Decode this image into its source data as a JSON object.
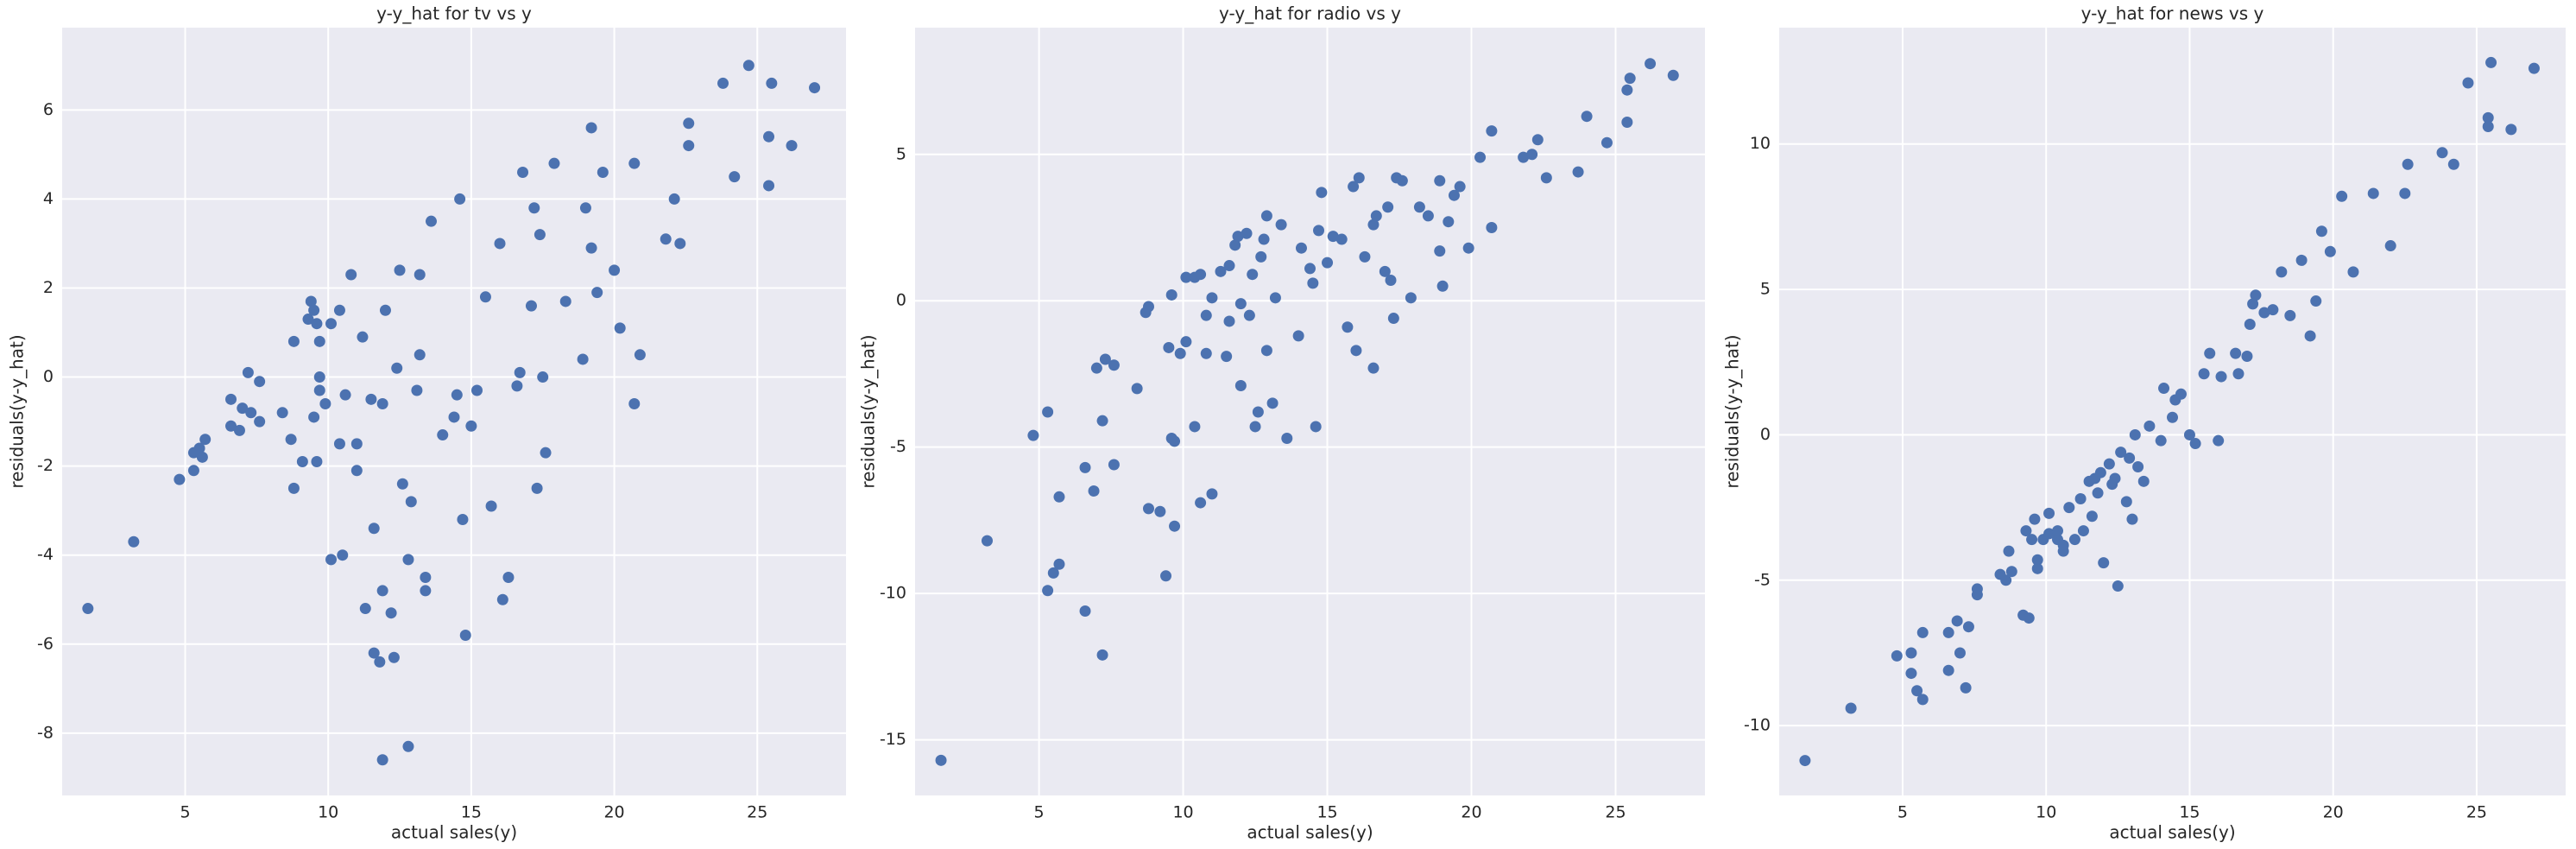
{
  "chart_data": [
    {
      "type": "scatter",
      "title": "y-y_hat for tv vs y",
      "xlabel": "actual sales(y)",
      "ylabel": "residuals(y-y_hat)",
      "color": "#4c72b0",
      "grid": true,
      "xlim": [
        0.7,
        28.1
      ],
      "ylim": [
        -9.4,
        7.85
      ],
      "xticks": [
        5,
        10,
        15,
        20,
        25
      ],
      "yticks": [
        -8,
        -6,
        -4,
        -2,
        0,
        2,
        4,
        6
      ],
      "x": [
        1.6,
        3.2,
        4.8,
        5.3,
        5.3,
        5.5,
        5.6,
        5.7,
        6.6,
        6.6,
        6.9,
        7.0,
        7.2,
        7.3,
        7.6,
        7.6,
        8.4,
        8.7,
        8.8,
        8.8,
        9.1,
        9.3,
        9.4,
        9.5,
        9.5,
        9.6,
        9.6,
        9.7,
        9.7,
        9.7,
        9.9,
        10.1,
        10.1,
        10.4,
        10.4,
        10.5,
        10.6,
        10.8,
        11.0,
        11.0,
        11.2,
        11.3,
        11.5,
        11.6,
        11.6,
        11.8,
        11.9,
        11.9,
        11.9,
        12.0,
        12.2,
        12.3,
        12.4,
        12.5,
        12.6,
        12.8,
        12.8,
        12.9,
        13.1,
        13.2,
        13.2,
        13.4,
        13.4,
        13.6,
        14.0,
        14.4,
        14.5,
        14.6,
        14.7,
        14.8,
        15.0,
        15.2,
        15.5,
        15.7,
        16.0,
        16.1,
        16.3,
        16.6,
        16.7,
        16.8,
        17.1,
        17.2,
        17.3,
        17.4,
        17.5,
        17.6,
        17.9,
        18.3,
        18.9,
        19.0,
        19.2,
        19.2,
        19.4,
        19.6,
        20.0,
        20.2,
        20.7,
        20.7,
        20.9,
        21.8,
        22.1,
        22.3,
        22.6,
        22.6,
        23.8,
        24.2,
        24.7,
        25.4,
        25.4,
        25.5,
        26.2,
        27.0
      ],
      "values": [
        -5.2,
        -3.7,
        -2.3,
        -2.1,
        -1.7,
        -1.6,
        -1.8,
        -1.4,
        -1.1,
        -0.5,
        -1.2,
        -0.7,
        0.1,
        -0.8,
        -0.1,
        -1.0,
        -0.8,
        -1.4,
        -2.5,
        0.8,
        -1.9,
        1.3,
        1.7,
        -0.9,
        1.5,
        1.2,
        -1.9,
        0.8,
        0.0,
        -0.3,
        -0.6,
        -4.1,
        1.2,
        -1.5,
        1.5,
        -4.0,
        -0.4,
        2.3,
        -2.1,
        -1.5,
        0.9,
        -5.2,
        -0.5,
        -3.4,
        -6.2,
        -6.4,
        -8.6,
        -4.8,
        -0.6,
        1.5,
        -5.3,
        -6.3,
        0.2,
        2.4,
        -2.4,
        -4.1,
        -8.3,
        -2.8,
        -0.3,
        0.5,
        2.3,
        -4.5,
        -4.8,
        3.5,
        -1.3,
        -0.9,
        -0.4,
        4.0,
        -3.2,
        -5.8,
        -1.1,
        -0.3,
        1.8,
        -2.9,
        3.0,
        -5.0,
        -4.5,
        -0.2,
        0.1,
        4.6,
        1.6,
        3.8,
        -2.5,
        3.2,
        0.0,
        -1.7,
        4.8,
        1.7,
        0.4,
        3.8,
        2.9,
        5.6,
        1.9,
        4.6,
        2.4,
        1.1,
        -0.6,
        4.8,
        0.5,
        3.1,
        4.0,
        3.0,
        5.2,
        5.7,
        6.6,
        4.5,
        7.0,
        4.3,
        5.4,
        6.6,
        5.2,
        6.5
      ]
    },
    {
      "type": "scatter",
      "title": "y-y_hat for radio vs y",
      "xlabel": "actual sales(y)",
      "ylabel": "residuals(y-y_hat)",
      "color": "#4c72b0",
      "grid": true,
      "xlim": [
        0.7,
        28.1
      ],
      "ylim": [
        -16.9,
        9.33
      ],
      "xticks": [
        5,
        10,
        15,
        20,
        25
      ],
      "yticks": [
        -15,
        -10,
        -5,
        0,
        5
      ],
      "x": [
        1.6,
        3.2,
        4.8,
        5.3,
        5.3,
        5.5,
        5.7,
        5.7,
        6.6,
        6.6,
        6.9,
        7.0,
        7.2,
        7.2,
        7.3,
        7.6,
        7.6,
        8.4,
        8.7,
        8.8,
        8.8,
        9.2,
        9.4,
        9.5,
        9.6,
        9.6,
        9.7,
        9.7,
        9.9,
        10.1,
        10.1,
        10.4,
        10.4,
        10.6,
        10.6,
        10.8,
        10.8,
        11.0,
        11.0,
        11.3,
        11.5,
        11.6,
        11.6,
        11.8,
        11.9,
        12.0,
        12.0,
        12.2,
        12.3,
        12.4,
        12.5,
        12.6,
        12.7,
        12.8,
        12.9,
        12.9,
        13.1,
        13.2,
        13.4,
        13.6,
        14.0,
        14.1,
        14.4,
        14.5,
        14.6,
        14.7,
        14.8,
        15.0,
        15.2,
        15.5,
        15.7,
        15.9,
        16.0,
        16.1,
        16.3,
        16.6,
        16.6,
        16.7,
        17.0,
        17.1,
        17.2,
        17.3,
        17.4,
        17.6,
        17.9,
        18.2,
        18.5,
        18.9,
        18.9,
        19.0,
        19.2,
        19.4,
        19.6,
        19.9,
        20.3,
        20.7,
        20.7,
        21.8,
        22.1,
        22.3,
        22.6,
        23.7,
        24.0,
        24.7,
        25.4,
        25.4,
        25.5,
        26.2,
        27.0
      ],
      "values": [
        -15.7,
        -8.2,
        -4.6,
        -9.9,
        -3.8,
        -9.3,
        -6.7,
        -9.0,
        -10.6,
        -5.7,
        -6.5,
        -2.3,
        -4.1,
        -12.1,
        -2.0,
        -5.6,
        -2.2,
        -3.0,
        -0.4,
        -7.1,
        -0.2,
        -7.2,
        -9.4,
        -1.6,
        0.2,
        -4.7,
        -7.7,
        -4.8,
        -1.8,
        -1.4,
        0.8,
        -4.3,
        0.8,
        0.9,
        -6.9,
        -0.5,
        -1.8,
        -6.6,
        0.1,
        1.0,
        -1.9,
        1.2,
        -0.7,
        1.9,
        2.2,
        -0.1,
        -2.9,
        2.3,
        -0.5,
        0.9,
        -4.3,
        -3.8,
        1.5,
        2.1,
        -1.7,
        2.9,
        -3.5,
        0.1,
        2.6,
        -4.7,
        -1.2,
        1.8,
        1.1,
        0.6,
        -4.3,
        2.4,
        3.7,
        1.3,
        2.2,
        2.1,
        -0.9,
        3.9,
        -1.7,
        4.2,
        1.5,
        2.6,
        -2.3,
        2.9,
        1.0,
        3.2,
        0.7,
        -0.6,
        4.2,
        4.1,
        0.1,
        3.2,
        2.9,
        1.7,
        4.1,
        0.5,
        2.7,
        3.6,
        3.9,
        1.8,
        4.9,
        2.5,
        5.8,
        4.9,
        5.0,
        5.5,
        4.2,
        4.4,
        6.3,
        5.4,
        6.1,
        7.2,
        7.6,
        8.1,
        7.7
      ]
    },
    {
      "type": "scatter",
      "title": "y-y_hat for news vs y",
      "xlabel": "actual sales(y)",
      "ylabel": "residuals(y-y_hat)",
      "color": "#4c72b0",
      "grid": true,
      "xlim": [
        0.7,
        28.1
      ],
      "ylim": [
        -12.4,
        14.0
      ],
      "xticks": [
        5,
        10,
        15,
        20,
        25
      ],
      "yticks": [
        -10,
        -5,
        0,
        5,
        10
      ],
      "x": [
        1.6,
        3.2,
        4.8,
        5.3,
        5.3,
        5.5,
        5.7,
        5.7,
        6.6,
        6.6,
        6.9,
        7.0,
        7.2,
        7.3,
        7.6,
        7.6,
        8.4,
        8.6,
        8.7,
        8.8,
        9.2,
        9.3,
        9.4,
        9.5,
        9.6,
        9.7,
        9.7,
        9.9,
        10.1,
        10.1,
        10.4,
        10.4,
        10.6,
        10.6,
        10.8,
        11.0,
        11.2,
        11.3,
        11.5,
        11.6,
        11.7,
        11.8,
        11.9,
        12.0,
        12.2,
        12.3,
        12.4,
        12.5,
        12.6,
        12.8,
        12.9,
        13.0,
        13.1,
        13.2,
        13.4,
        13.6,
        14.0,
        14.1,
        14.4,
        14.5,
        14.7,
        15.0,
        15.2,
        15.5,
        15.7,
        16.0,
        16.1,
        16.6,
        16.7,
        17.0,
        17.1,
        17.2,
        17.3,
        17.6,
        17.9,
        18.2,
        18.5,
        18.9,
        19.2,
        19.4,
        19.6,
        19.9,
        20.3,
        20.7,
        21.4,
        22.0,
        22.5,
        22.6,
        23.8,
        24.2,
        24.7,
        25.4,
        25.4,
        25.5,
        26.2,
        27.0
      ],
      "values": [
        -11.2,
        -9.4,
        -7.6,
        -7.5,
        -8.2,
        -8.8,
        -9.1,
        -6.8,
        -8.1,
        -6.8,
        -6.4,
        -7.5,
        -8.7,
        -6.6,
        -5.5,
        -5.3,
        -4.8,
        -5.0,
        -4.0,
        -4.7,
        -6.2,
        -3.3,
        -6.3,
        -3.6,
        -2.9,
        -4.6,
        -4.3,
        -3.6,
        -2.7,
        -3.4,
        -3.3,
        -3.6,
        -3.8,
        -4.0,
        -2.5,
        -3.6,
        -2.2,
        -3.3,
        -1.6,
        -2.8,
        -1.5,
        -2.0,
        -1.3,
        -4.4,
        -1.0,
        -1.7,
        -1.5,
        -5.2,
        -0.6,
        -2.3,
        -0.8,
        -2.9,
        0.0,
        -1.1,
        -1.6,
        0.3,
        -0.2,
        1.6,
        0.6,
        1.2,
        1.4,
        0.0,
        -0.3,
        2.1,
        2.8,
        -0.2,
        2.0,
        2.8,
        2.1,
        2.7,
        3.8,
        4.5,
        4.8,
        4.2,
        4.3,
        5.6,
        4.1,
        6.0,
        3.4,
        4.6,
        7.0,
        6.3,
        8.2,
        5.6,
        8.3,
        6.5,
        8.3,
        9.3,
        9.7,
        9.3,
        12.1,
        10.9,
        10.6,
        12.8,
        10.5,
        12.6
      ]
    }
  ]
}
